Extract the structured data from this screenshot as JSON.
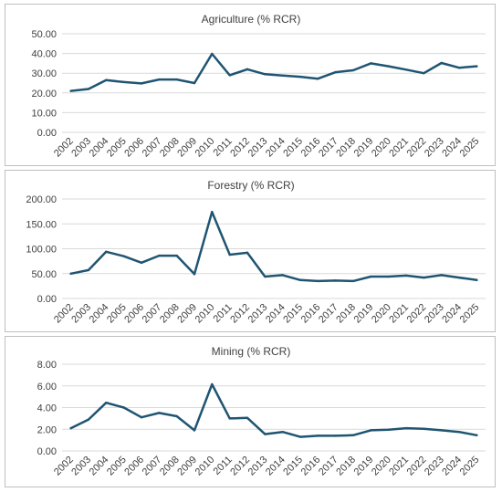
{
  "style": {
    "line_color": "#1f5572",
    "grid_color": "#d9d9d9",
    "text_color": "#404040",
    "border_color": "#bfbfbf"
  },
  "chart_data": [
    {
      "type": "line",
      "title": "Agriculture (% RCR)",
      "categories": [
        "2002",
        "2003",
        "2004",
        "2005",
        "2006",
        "2007",
        "2008",
        "2009",
        "2010",
        "2011",
        "2012",
        "2013",
        "2014",
        "2015",
        "2016",
        "2017",
        "2018",
        "2019",
        "2020",
        "2021",
        "2022",
        "2023",
        "2024",
        "2025"
      ],
      "values": [
        21.0,
        22.0,
        26.5,
        25.5,
        24.8,
        26.8,
        26.8,
        25.0,
        39.8,
        29.0,
        32.0,
        29.5,
        28.8,
        28.2,
        27.2,
        30.5,
        31.5,
        35.0,
        33.5,
        31.8,
        30.0,
        35.2,
        32.8,
        33.5
      ],
      "ylim": [
        0,
        50
      ],
      "yticks": [
        "0.00",
        "10.00",
        "20.00",
        "30.00",
        "40.00",
        "50.00"
      ],
      "grid": true,
      "legend": "none"
    },
    {
      "type": "line",
      "title": "Forestry (% RCR)",
      "categories": [
        "2002",
        "2003",
        "2004",
        "2005",
        "2006",
        "2007",
        "2008",
        "2009",
        "2010",
        "2011",
        "2012",
        "2013",
        "2014",
        "2015",
        "2016",
        "2017",
        "2018",
        "2019",
        "2020",
        "2021",
        "2022",
        "2023",
        "2024",
        "2025"
      ],
      "values": [
        50,
        57,
        94,
        85,
        72,
        86,
        86,
        49,
        174,
        88,
        92,
        44,
        47,
        37,
        35,
        36,
        35,
        44,
        44,
        46,
        42,
        47,
        42,
        37
      ],
      "ylim": [
        0,
        200
      ],
      "yticks": [
        "0.00",
        "50.00",
        "100.00",
        "150.00",
        "200.00"
      ],
      "grid": true,
      "legend": "none"
    },
    {
      "type": "line",
      "title": "Mining (% RCR)",
      "categories": [
        "2002",
        "2003",
        "2004",
        "2005",
        "2006",
        "2007",
        "2008",
        "2009",
        "2010",
        "2011",
        "2012",
        "2013",
        "2014",
        "2015",
        "2016",
        "2017",
        "2018",
        "2019",
        "2020",
        "2021",
        "2022",
        "2023",
        "2024",
        "2025"
      ],
      "values": [
        2.1,
        2.9,
        4.45,
        4.0,
        3.1,
        3.5,
        3.2,
        1.9,
        6.15,
        3.0,
        3.05,
        1.55,
        1.75,
        1.3,
        1.4,
        1.4,
        1.45,
        1.9,
        1.95,
        2.1,
        2.05,
        1.9,
        1.75,
        1.45
      ],
      "ylim": [
        0,
        8
      ],
      "yticks": [
        "0.00",
        "2.00",
        "4.00",
        "6.00",
        "8.00"
      ],
      "grid": true,
      "legend": "none"
    }
  ]
}
